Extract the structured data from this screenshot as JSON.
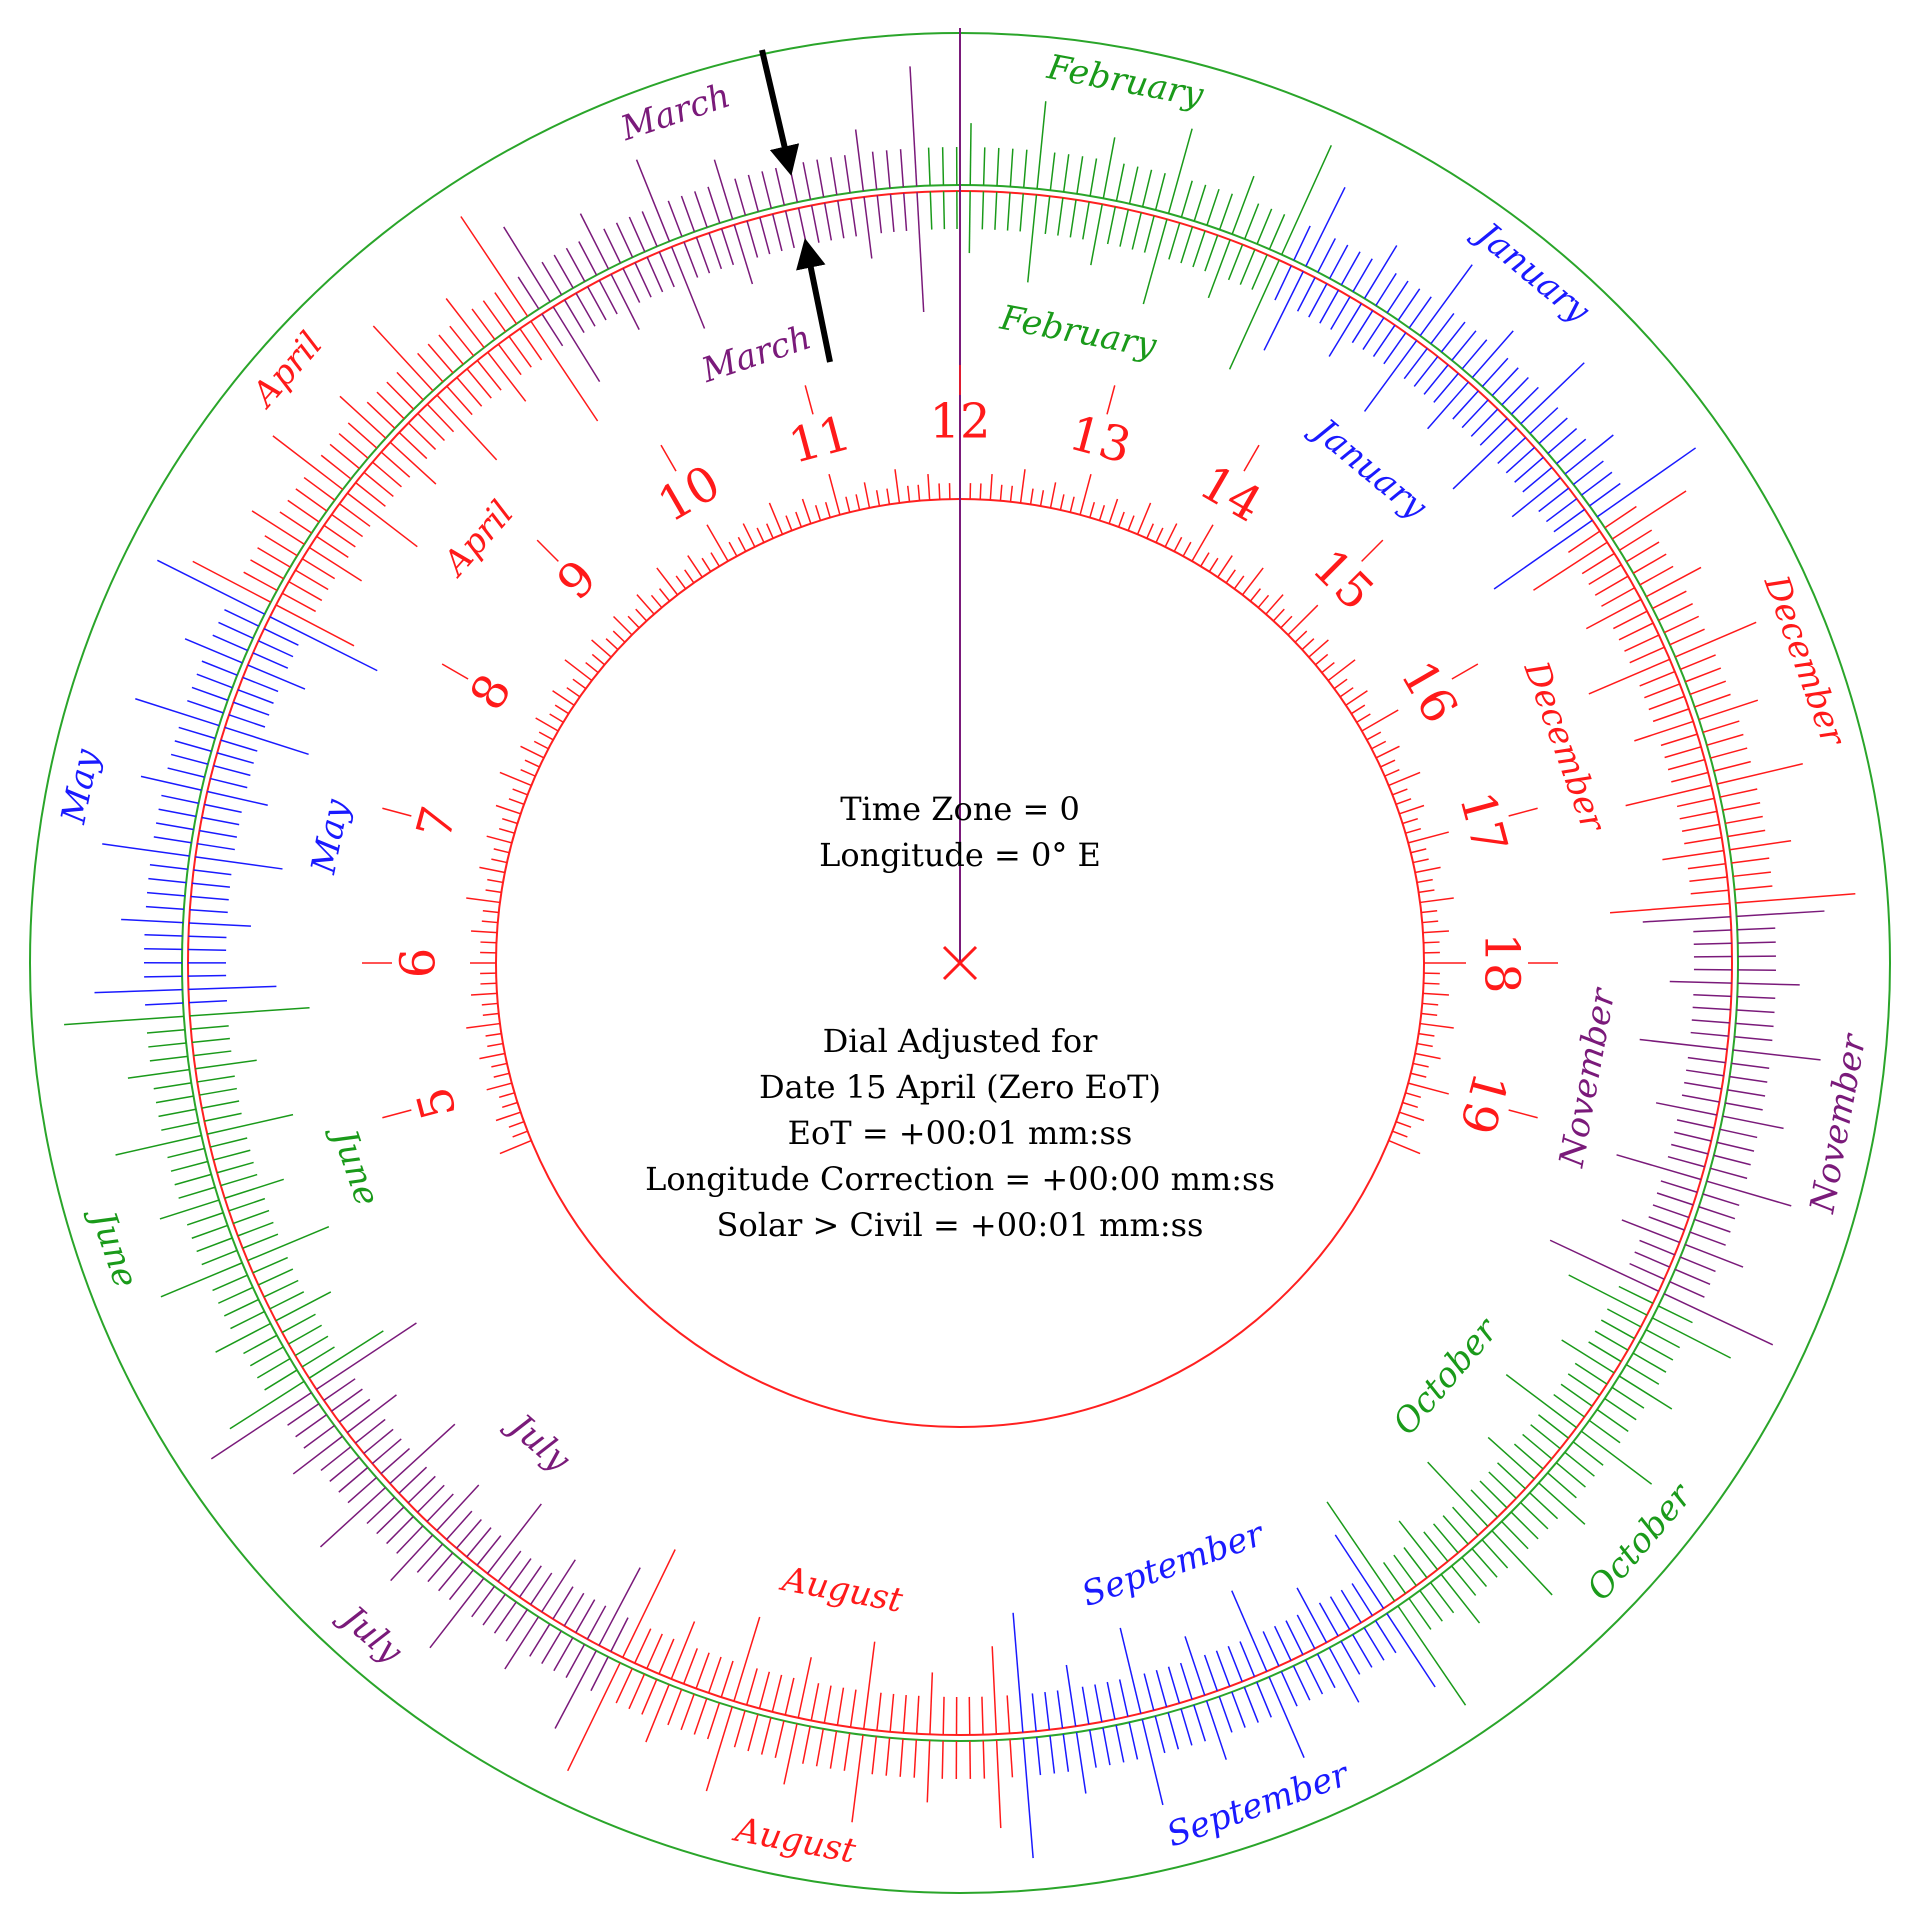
{
  "hour_numbers": [
    "5",
    "6",
    "7",
    "8",
    "9",
    "10",
    "11",
    "12",
    "13",
    "14",
    "15",
    "16",
    "17",
    "18",
    "19"
  ],
  "months_outer": [
    "January",
    "February",
    "March",
    "April",
    "May",
    "June",
    "July",
    "August",
    "September",
    "October",
    "November",
    "December"
  ],
  "months_inner": [
    "January",
    "February",
    "March",
    "April",
    "May",
    "June",
    "July",
    "August",
    "September",
    "October",
    "November",
    "December"
  ],
  "info": {
    "time_zone": "Time Zone = 0",
    "longitude": "Longitude = 0° E",
    "dial_adjusted": "Dial Adjusted for",
    "date_line": "Date 15 April (Zero EoT)",
    "eot_line": "EoT = +00:01 mm:ss",
    "longitude_correction": "Longitude Correction = +00:00 mm:ss",
    "solar_civil": "Solar > Civil = +00:01 mm:ss"
  },
  "colors": {
    "red": "#ff1a1a",
    "green": "#1a9a1a",
    "blue": "#1a1aff",
    "purple": "#7a1a7a",
    "black": "#000000",
    "ring_outer": "#2aa52a",
    "ring_inner": "#ff2020"
  },
  "month_colors": [
    "blue",
    "green",
    "purple",
    "red",
    "blue",
    "green",
    "purple",
    "red",
    "blue",
    "green",
    "purple",
    "red"
  ]
}
